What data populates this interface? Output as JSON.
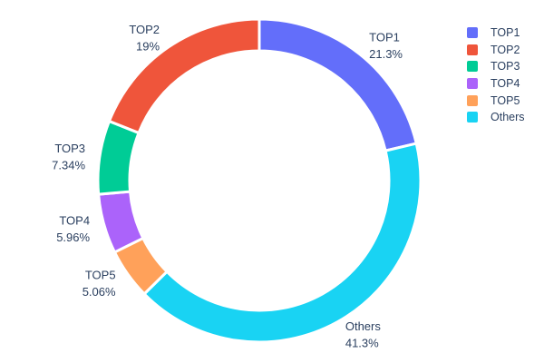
{
  "figure": {
    "background": "#FFFFFF",
    "text_color": "#2A3F5F",
    "separator_color": "#FFFFFF"
  },
  "chart_data": {
    "type": "pie",
    "subtype": "donut",
    "hole_ratio": 0.8,
    "labels": [
      "TOP1",
      "TOP2",
      "TOP3",
      "TOP4",
      "TOP5",
      "Others"
    ],
    "values_percent": [
      21.3,
      19,
      7.34,
      5.96,
      5.06,
      41.3
    ],
    "percent_labels": [
      "21.3%",
      "19%",
      "7.34%",
      "5.96%",
      "5.06%",
      "41.3%"
    ],
    "colors": [
      "#636EFA",
      "#EF553B",
      "#00CC96",
      "#AB63FA",
      "#FFA15A",
      "#19D3F3"
    ],
    "clockwise_from_top": [
      "TOP1",
      "Others",
      "TOP5",
      "TOP4",
      "TOP3",
      "TOP2"
    ],
    "labels_outside": true,
    "legend": {
      "position": "right",
      "entries": [
        "TOP1",
        "TOP2",
        "TOP3",
        "TOP4",
        "TOP5",
        "Others"
      ]
    }
  }
}
